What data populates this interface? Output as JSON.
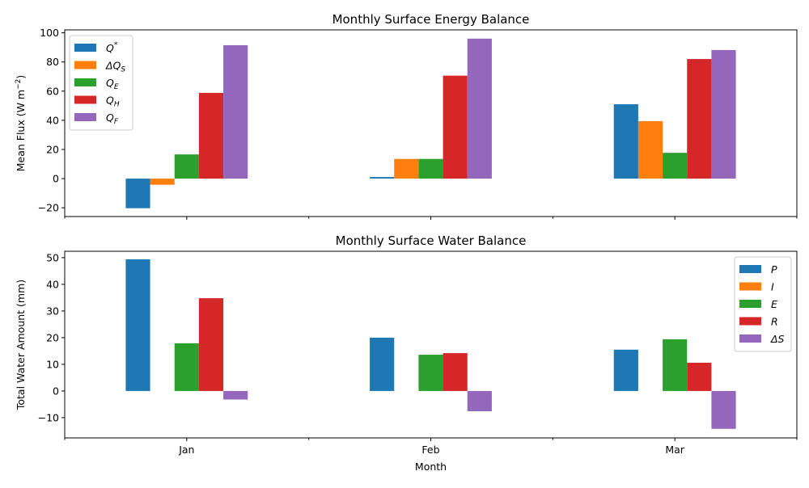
{
  "chart_data": [
    {
      "type": "bar",
      "title": "Monthly Surface Energy Balance",
      "xlabel": "",
      "ylabel": "Mean Flux (W m⁻²)",
      "ylabel_parts": {
        "main": "Mean Flux (W m",
        "sup": "−2",
        "close": ")"
      },
      "categories": [
        "Jan",
        "Feb",
        "Mar"
      ],
      "show_xtick_labels": false,
      "ylim": [
        -26,
        102
      ],
      "yticks": [
        -20,
        0,
        20,
        40,
        60,
        80,
        100
      ],
      "grid": false,
      "legend": "top-left",
      "series": [
        {
          "name": "Q*",
          "base": "Q",
          "sup": "*",
          "sub": "",
          "color": "#1f77b4",
          "values": [
            -20.3,
            1.1,
            51.0
          ]
        },
        {
          "name": "ΔQS",
          "base": "ΔQ",
          "sup": "",
          "sub": "S",
          "color": "#ff7f0e",
          "values": [
            -4.2,
            13.5,
            39.4
          ]
        },
        {
          "name": "QE",
          "base": "Q",
          "sup": "",
          "sub": "E",
          "color": "#2ca02c",
          "values": [
            16.6,
            13.5,
            17.7
          ]
        },
        {
          "name": "QH",
          "base": "Q",
          "sup": "",
          "sub": "H",
          "color": "#d62728",
          "values": [
            58.8,
            70.6,
            82.0
          ]
        },
        {
          "name": "QF",
          "base": "Q",
          "sup": "",
          "sub": "F",
          "color": "#9467bd",
          "values": [
            91.5,
            96.0,
            88.2
          ]
        }
      ]
    },
    {
      "type": "bar",
      "title": "Monthly Surface Water Balance",
      "xlabel": "Month",
      "ylabel": "Total Water Amount (mm)",
      "categories": [
        "Jan",
        "Feb",
        "Mar"
      ],
      "show_xtick_labels": true,
      "ylim": [
        -17.6,
        52.4
      ],
      "yticks": [
        -10,
        0,
        10,
        20,
        30,
        40,
        50
      ],
      "grid": false,
      "legend": "top-right",
      "series": [
        {
          "name": "P",
          "base": "P",
          "sup": "",
          "sub": "",
          "color": "#1f77b4",
          "values": [
            49.4,
            20.0,
            15.5
          ]
        },
        {
          "name": "I",
          "base": "I",
          "sup": "",
          "sub": "",
          "color": "#ff7f0e",
          "values": [
            0,
            0,
            0
          ]
        },
        {
          "name": "E",
          "base": "E",
          "sup": "",
          "sub": "",
          "color": "#2ca02c",
          "values": [
            17.9,
            13.6,
            19.4
          ]
        },
        {
          "name": "R",
          "base": "R",
          "sup": "",
          "sub": "",
          "color": "#d62728",
          "values": [
            34.8,
            14.2,
            10.6
          ]
        },
        {
          "name": "ΔS",
          "base": "ΔS",
          "sup": "",
          "sub": "",
          "color": "#9467bd",
          "values": [
            -3.2,
            -7.6,
            -14.2
          ]
        }
      ]
    }
  ]
}
